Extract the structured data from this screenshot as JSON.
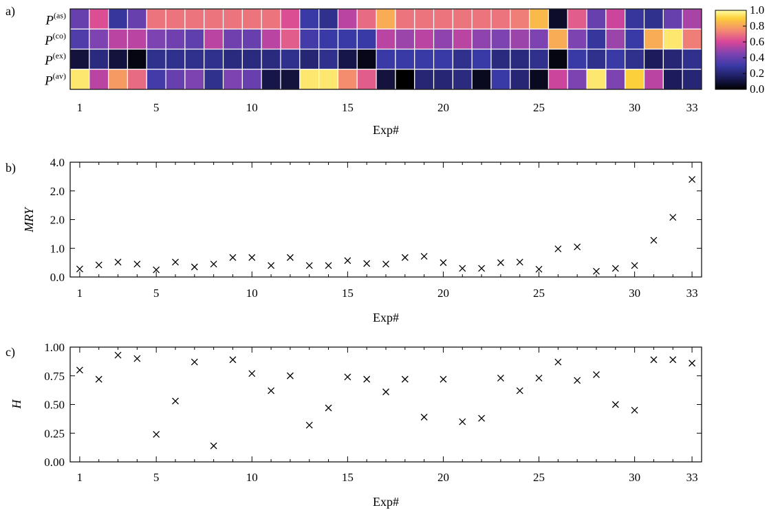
{
  "panels": {
    "a": "a)",
    "b": "b)",
    "c": "c)"
  },
  "heatmap": {
    "type": "heatmap",
    "rows": [
      "as",
      "co",
      "ex",
      "av"
    ],
    "row_symbol": "P",
    "xlabel": "Exp#",
    "xticks": [
      1,
      5,
      10,
      15,
      20,
      25,
      30,
      33
    ],
    "colorbar": {
      "ticks": [
        "1.0",
        "0.8",
        "0.6",
        "0.4",
        "0.2",
        "0.0"
      ],
      "range": [
        0,
        1
      ]
    },
    "values": [
      [
        0.4,
        0.62,
        0.28,
        0.4,
        0.7,
        0.7,
        0.7,
        0.7,
        0.7,
        0.7,
        0.7,
        0.62,
        0.3,
        0.25,
        0.55,
        0.68,
        0.82,
        0.7,
        0.7,
        0.7,
        0.7,
        0.7,
        0.7,
        0.72,
        0.85,
        0.07,
        0.65,
        0.4,
        0.58,
        0.28,
        0.25,
        0.4,
        0.52
      ],
      [
        0.35,
        0.45,
        0.55,
        0.55,
        0.45,
        0.42,
        0.38,
        0.55,
        0.42,
        0.4,
        0.55,
        0.65,
        0.32,
        0.3,
        0.3,
        0.3,
        0.55,
        0.5,
        0.55,
        0.48,
        0.55,
        0.48,
        0.45,
        0.5,
        0.45,
        0.82,
        0.45,
        0.28,
        0.5,
        0.3,
        0.82,
        0.95,
        0.72
      ],
      [
        0.1,
        0.22,
        0.1,
        0.03,
        0.25,
        0.25,
        0.25,
        0.25,
        0.22,
        0.22,
        0.22,
        0.25,
        0.2,
        0.25,
        0.12,
        0.04,
        0.3,
        0.3,
        0.3,
        0.3,
        0.25,
        0.3,
        0.22,
        0.22,
        0.25,
        0.03,
        0.3,
        0.25,
        0.3,
        0.25,
        0.15,
        0.2,
        0.25
      ],
      [
        0.95,
        0.55,
        0.78,
        0.68,
        0.32,
        0.4,
        0.45,
        0.25,
        0.45,
        0.4,
        0.12,
        0.1,
        0.95,
        0.95,
        0.75,
        0.65,
        0.1,
        0.0,
        0.2,
        0.2,
        0.22,
        0.05,
        0.3,
        0.2,
        0.05,
        0.58,
        0.45,
        0.95,
        0.45,
        0.9,
        0.55,
        0.15,
        0.2
      ]
    ]
  },
  "chart_data": [
    {
      "type": "scatter",
      "xlabel": "Exp#",
      "ylabel": "MRY",
      "ylim": [
        0,
        4
      ],
      "yticks": [
        "0.0",
        "1.0",
        "2.0",
        "2.0",
        "4.0"
      ],
      "xticks": [
        1,
        5,
        10,
        15,
        20,
        25,
        30,
        33
      ],
      "x": [
        1,
        2,
        3,
        4,
        5,
        6,
        7,
        8,
        9,
        10,
        11,
        12,
        13,
        14,
        15,
        16,
        17,
        18,
        19,
        20,
        21,
        22,
        23,
        24,
        25,
        26,
        27,
        28,
        29,
        30,
        31,
        32,
        33
      ],
      "y": [
        0.28,
        0.42,
        0.52,
        0.45,
        0.25,
        0.52,
        0.35,
        0.45,
        0.68,
        0.68,
        0.4,
        0.68,
        0.4,
        0.4,
        0.57,
        0.47,
        0.45,
        0.68,
        0.72,
        0.5,
        0.3,
        0.3,
        0.5,
        0.52,
        0.27,
        0.98,
        1.05,
        0.2,
        0.3,
        0.4,
        1.28,
        2.08,
        3.4
      ]
    },
    {
      "type": "scatter",
      "xlabel": "Exp#",
      "ylabel": "H",
      "ylim": [
        0,
        1
      ],
      "yticks": [
        "0.00",
        "0.25",
        "0.50",
        "0.75",
        "1.00"
      ],
      "xticks": [
        1,
        5,
        10,
        15,
        20,
        25,
        30,
        33
      ],
      "x": [
        1,
        2,
        3,
        4,
        5,
        6,
        7,
        8,
        9,
        10,
        11,
        12,
        13,
        14,
        15,
        16,
        17,
        18,
        19,
        20,
        21,
        22,
        23,
        24,
        25,
        26,
        27,
        28,
        29,
        30,
        31,
        32,
        33
      ],
      "y": [
        0.8,
        0.72,
        0.93,
        0.9,
        0.24,
        0.53,
        0.87,
        0.14,
        0.89,
        0.77,
        0.62,
        0.75,
        0.32,
        0.47,
        0.74,
        0.72,
        0.61,
        0.72,
        0.39,
        0.72,
        0.35,
        0.38,
        0.73,
        0.62,
        0.73,
        0.87,
        0.71,
        0.76,
        0.5,
        0.45,
        0.89,
        0.89,
        0.86
      ]
    }
  ]
}
